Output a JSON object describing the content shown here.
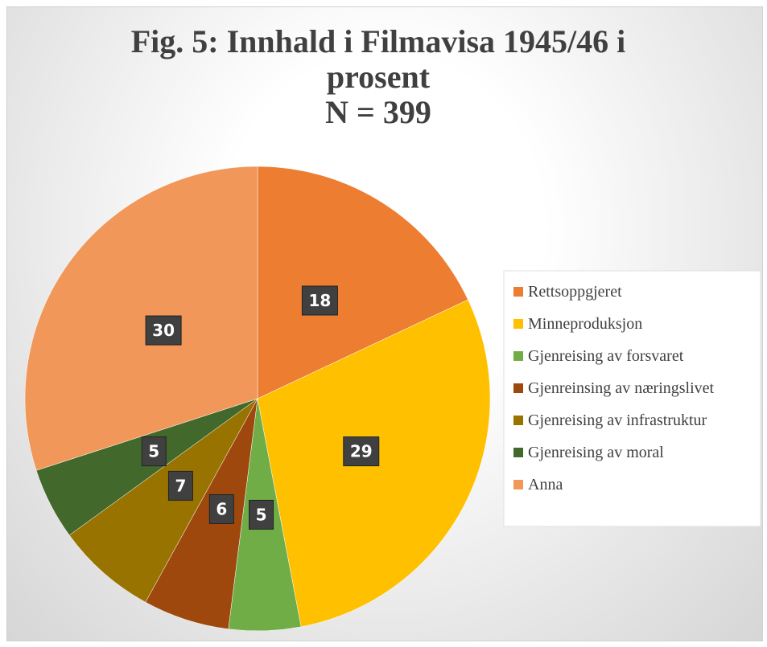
{
  "chart_data": {
    "type": "pie",
    "title": "Fig. 5: Innhald i Filmavisa 1945/46 i prosent",
    "subtitle": "N = 399",
    "categories": [
      "Rettsoppgjeret",
      "Minneproduksjon",
      "Gjenreising av forsvaret",
      "Gjenreinsing av næringslivet",
      "Gjenreising av infrastruktur",
      "Gjenreising av moral",
      "Anna"
    ],
    "values": [
      18,
      29,
      5,
      6,
      7,
      5,
      30
    ],
    "colors": [
      "#ED7D31",
      "#FFC000",
      "#70AD47",
      "#9E480E",
      "#997300",
      "#43682B",
      "#F1975A"
    ],
    "legend": "right"
  }
}
